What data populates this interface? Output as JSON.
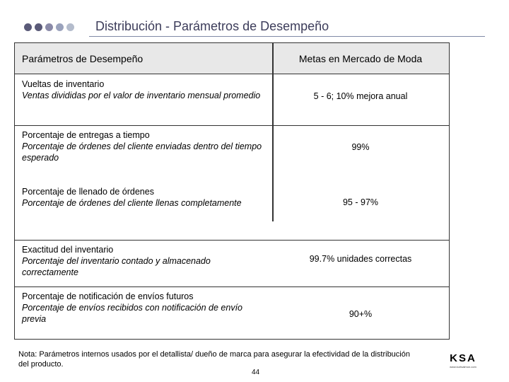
{
  "header": {
    "title": "Distribución - Parámetros de Desempeño",
    "dot_colors": [
      "#5a5a78",
      "#5a5a78",
      "#8a8aa8",
      "#9aa2bc",
      "#b4bccc"
    ]
  },
  "table": {
    "col_param": "Parámetros de Desempeño",
    "col_goal": "Metas en Mercado de Moda",
    "rows": [
      {
        "name": "Vueltas de inventario",
        "description": "Ventas divididas por el valor de inventario mensual promedio",
        "goal": "5 - 6; 10% mejora anual"
      },
      {
        "name": "Porcentaje de entregas a tiempo",
        "description": "Porcentaje de órdenes del cliente enviadas dentro del tiempo esperado",
        "goal": "99%"
      },
      {
        "name": "Porcentaje de llenado de órdenes",
        "description": "Porcentaje de órdenes del cliente llenas completamente",
        "goal": "95 - 97%"
      },
      {
        "name": "Exactitud del inventario",
        "description": "Porcentaje del inventario contado y almacenado correctamente",
        "goal": "99.7% unidades correctas"
      },
      {
        "name": "Porcentaje de notificación de envíos futuros",
        "description": "Porcentaje de envíos recibidos con notificación de envío previa",
        "goal": "90+%"
      }
    ]
  },
  "footer": {
    "note": "Nota: Parámetros internos usados por el detallista/ dueño de marca para asegurar la efectividad de la distribución del producto.",
    "page_number": "44",
    "logo_brand": "KSA",
    "logo_site": "www.kurtsalmon.com"
  }
}
